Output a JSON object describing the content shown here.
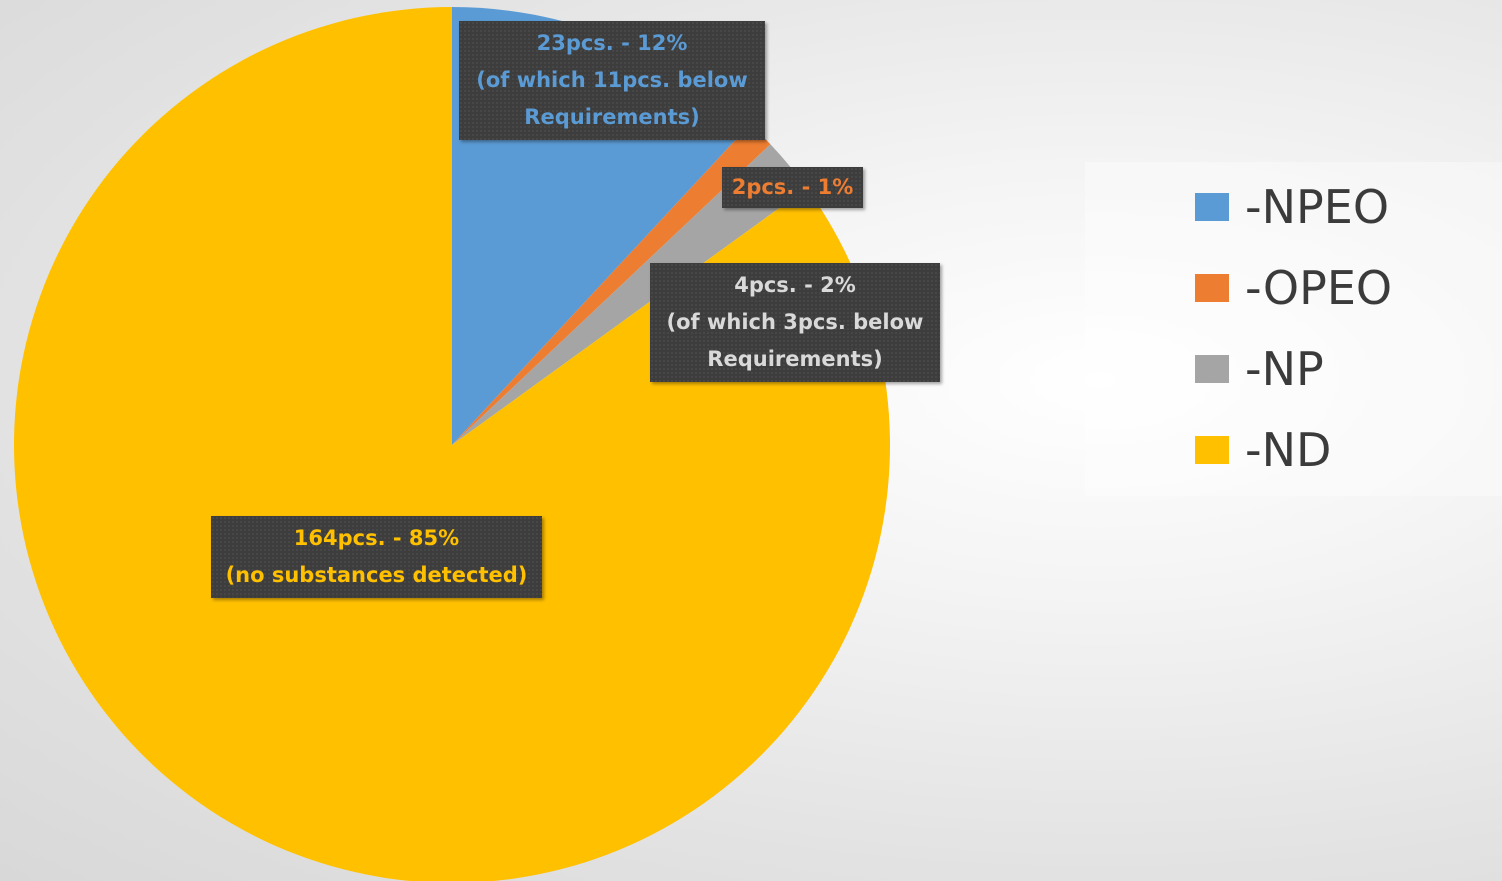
{
  "chart_data": {
    "type": "pie",
    "title": "",
    "start_angle_deg": 0,
    "direction": "clockwise",
    "legend_position": "right",
    "slices": [
      {
        "name": "-NPEO",
        "value": 23,
        "percent": 12,
        "color": "#5b9bd5",
        "label_lines": [
          "23pcs. - 12%",
          "(of which 11pcs. below",
          "Requirements)"
        ]
      },
      {
        "name": "-OPEO",
        "value": 2,
        "percent": 1,
        "color": "#ed7d31",
        "label_lines": [
          "2pcs. - 1%"
        ]
      },
      {
        "name": "-NP",
        "value": 4,
        "percent": 2,
        "color": "#a5a5a5",
        "label_lines": [
          "4pcs. - 2%",
          "(of which 3pcs. below",
          "Requirements)"
        ]
      },
      {
        "name": "-ND",
        "value": 164,
        "percent": 85,
        "color": "#ffc000",
        "label_lines": [
          "164pcs. -  85%",
          "(no substances detected)"
        ]
      }
    ],
    "label_text_colors": [
      "#5b9bd5",
      "#ed7d31",
      "#d9d9d9",
      "#ffc000"
    ],
    "label_background": "#3d3d3d"
  }
}
